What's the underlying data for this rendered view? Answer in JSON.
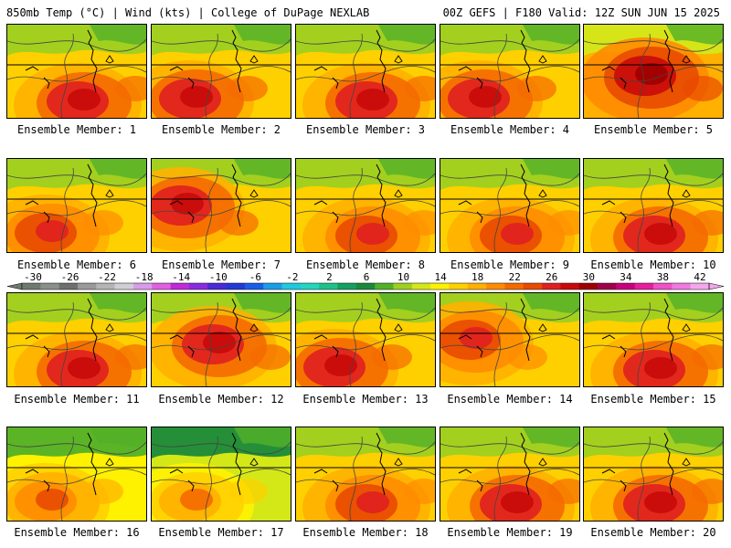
{
  "header": {
    "left": "850mb Temp (°C) | Wind (kts) | College of DuPage NEXLAB",
    "right": "00Z GEFS | F180 Valid: 12Z SUN JUN 15 2025"
  },
  "panels": [
    {
      "label": "Ensemble Member: 1",
      "heat": "high",
      "center": "south"
    },
    {
      "label": "Ensemble Member: 2",
      "heat": "high",
      "center": "southwest"
    },
    {
      "label": "Ensemble Member: 3",
      "heat": "high",
      "center": "south"
    },
    {
      "label": "Ensemble Member: 4",
      "heat": "high",
      "center": "southwest"
    },
    {
      "label": "Ensemble Member: 5",
      "heat": "extreme",
      "center": "central"
    },
    {
      "label": "Ensemble Member: 6",
      "heat": "moderate",
      "center": "southwest"
    },
    {
      "label": "Ensemble Member: 7",
      "heat": "high",
      "center": "west"
    },
    {
      "label": "Ensemble Member: 8",
      "heat": "moderate",
      "center": "south"
    },
    {
      "label": "Ensemble Member: 9",
      "heat": "moderate",
      "center": "south"
    },
    {
      "label": "Ensemble Member: 10",
      "heat": "high",
      "center": "south"
    },
    {
      "label": "Ensemble Member: 11",
      "heat": "high",
      "center": "south"
    },
    {
      "label": "Ensemble Member: 12",
      "heat": "high",
      "center": "central"
    },
    {
      "label": "Ensemble Member: 13",
      "heat": "high",
      "center": "southwest"
    },
    {
      "label": "Ensemble Member: 14",
      "heat": "moderate",
      "center": "west"
    },
    {
      "label": "Ensemble Member: 15",
      "heat": "high",
      "center": "south"
    },
    {
      "label": "Ensemble Member: 16",
      "heat": "low",
      "center": "southwest"
    },
    {
      "label": "Ensemble Member: 17",
      "heat": "cool",
      "center": "southwest"
    },
    {
      "label": "Ensemble Member: 18",
      "heat": "moderate",
      "center": "south"
    },
    {
      "label": "Ensemble Member: 19",
      "heat": "high",
      "center": "south"
    },
    {
      "label": "Ensemble Member: 20",
      "heat": "high",
      "center": "south"
    }
  ],
  "legend": {
    "ticks": [
      "-30",
      "-26",
      "-22",
      "-18",
      "-14",
      "-10",
      "-6",
      "-2",
      "2",
      "6",
      "10",
      "14",
      "18",
      "22",
      "26",
      "30",
      "34",
      "38",
      "42"
    ],
    "colors": [
      "#6e7a6e",
      "#8a8f8a",
      "#6f6f6f",
      "#9a9a9a",
      "#b5b5b5",
      "#cfcfd6",
      "#d89ce8",
      "#e061e0",
      "#c02ad8",
      "#8a2be2",
      "#4b2bd6",
      "#2438d6",
      "#1a5ee8",
      "#1a9ee8",
      "#20c8e0",
      "#22d6c0",
      "#1ec08a",
      "#14a060",
      "#1a8a3a",
      "#52b028",
      "#9ed020",
      "#d4e818",
      "#fff200",
      "#ffd000",
      "#ffb000",
      "#ff8c00",
      "#f56a00",
      "#e84a00",
      "#e02020",
      "#c80a0a",
      "#9e0000",
      "#a0004a",
      "#c8007c",
      "#e61e9e",
      "#f050c8",
      "#f07ae0",
      "#f4a8ec"
    ]
  }
}
